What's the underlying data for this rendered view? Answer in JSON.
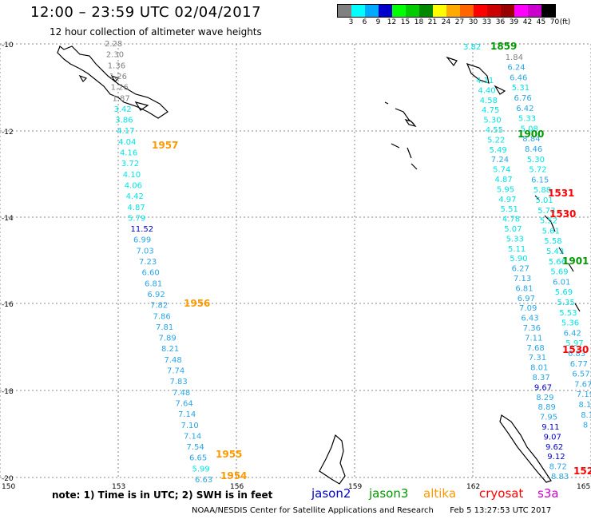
{
  "header": {
    "title": "12:00 – 23:59 UTC 02/04/2017",
    "subtitle": "12 hour collection of altimeter wave heights"
  },
  "scale": {
    "colors": [
      "#808080",
      "#00ffff",
      "#00aaff",
      "#0000cc",
      "#00ff00",
      "#00cc00",
      "#008800",
      "#ffff00",
      "#ffaa00",
      "#ff6600",
      "#ff0000",
      "#cc0000",
      "#990000",
      "#ff00ff",
      "#cc00cc",
      "#000000"
    ],
    "ticks": [
      "3",
      "6",
      "9",
      "12",
      "15",
      "18",
      "21",
      "24",
      "27",
      "30",
      "33",
      "36",
      "39",
      "42",
      "45",
      "70",
      "(ft)"
    ]
  },
  "axes": {
    "lat_labels": [
      "-10",
      "-12",
      "-14",
      "-16",
      "-18",
      "-20"
    ],
    "lon_labels": [
      "150",
      "153",
      "156",
      "159",
      "162",
      "165"
    ]
  },
  "tracks": {
    "altika_times": [
      "1957",
      "1956",
      "1955",
      "1954"
    ],
    "jason3_times": [
      "1859",
      "1900",
      "1901"
    ],
    "cryosat_times": [
      "1531",
      "1530",
      "1530",
      "152"
    ],
    "track_a": [
      "2.28",
      "2.30",
      "1.36",
      "1.26",
      "1.26",
      "1.87",
      "3.42",
      "3.86",
      "4.17",
      "4.04",
      "4.16",
      "3.72",
      "4.10",
      "4.06",
      "4.42",
      "4.87",
      "5.79",
      "11.52",
      "6.99",
      "7.03",
      "7.23",
      "6.60",
      "6.81",
      "6.92",
      "7.82",
      "7.86",
      "7.81",
      "7.89",
      "8.21",
      "7.48",
      "7.74",
      "7.83",
      "7.48",
      "7.64",
      "7.14",
      "7.10",
      "7.14",
      "7.54",
      "6.65",
      "5.99",
      "6.63"
    ],
    "track_b": [
      "3.82",
      "1.84",
      "6.24",
      "6.46",
      "5.31",
      "6.76",
      "6.42",
      "5.33",
      "5.08",
      "8.84",
      "8.46",
      "5.30",
      "5.72",
      "6.15",
      "5.88",
      "5.01",
      "5.73",
      "5.52",
      "5.61",
      "5.58",
      "5.43",
      "5.66",
      "5.69",
      "6.01",
      "5.69",
      "5.35",
      "5.53",
      "5.36",
      "6.42",
      "5.97",
      "6.83",
      "6.77",
      "6.57",
      "7.67",
      "7.19",
      "8.14",
      "8.1",
      "8"
    ],
    "track_c": [
      "4.11",
      "4.40",
      "4.58",
      "4.75",
      "5.30",
      "4.55",
      "5.22",
      "5.49",
      "7.24",
      "5.74",
      "4.87",
      "5.95",
      "4.97",
      "5.51",
      "4.78",
      "5.07",
      "5.33",
      "5.11",
      "5.90",
      "6.27",
      "7.13",
      "6.81",
      "6.97",
      "7.09",
      "6.43",
      "7.36",
      "7.11",
      "7.68",
      "7.31",
      "8.01",
      "8.37",
      "9.67",
      "8.29",
      "8.89",
      "7.95",
      "9.11",
      "9.07",
      "9.62",
      "9.12",
      "8.72",
      "8.83"
    ]
  },
  "footer": {
    "note": "note: 1) Time is in UTC; 2) SWH is in feet",
    "satellites": [
      {
        "name": "jason2",
        "color": "#0000cc"
      },
      {
        "name": "jason3",
        "color": "#009900"
      },
      {
        "name": "altika",
        "color": "#ff9900"
      },
      {
        "name": "cryosat",
        "color": "#ff0000"
      },
      {
        "name": "s3a",
        "color": "#cc00cc"
      }
    ],
    "credit": "NOAA/NESDIS Center for Satellite Applications and Research",
    "timestamp": "Feb  5 13:27:53 UTC 2017"
  }
}
